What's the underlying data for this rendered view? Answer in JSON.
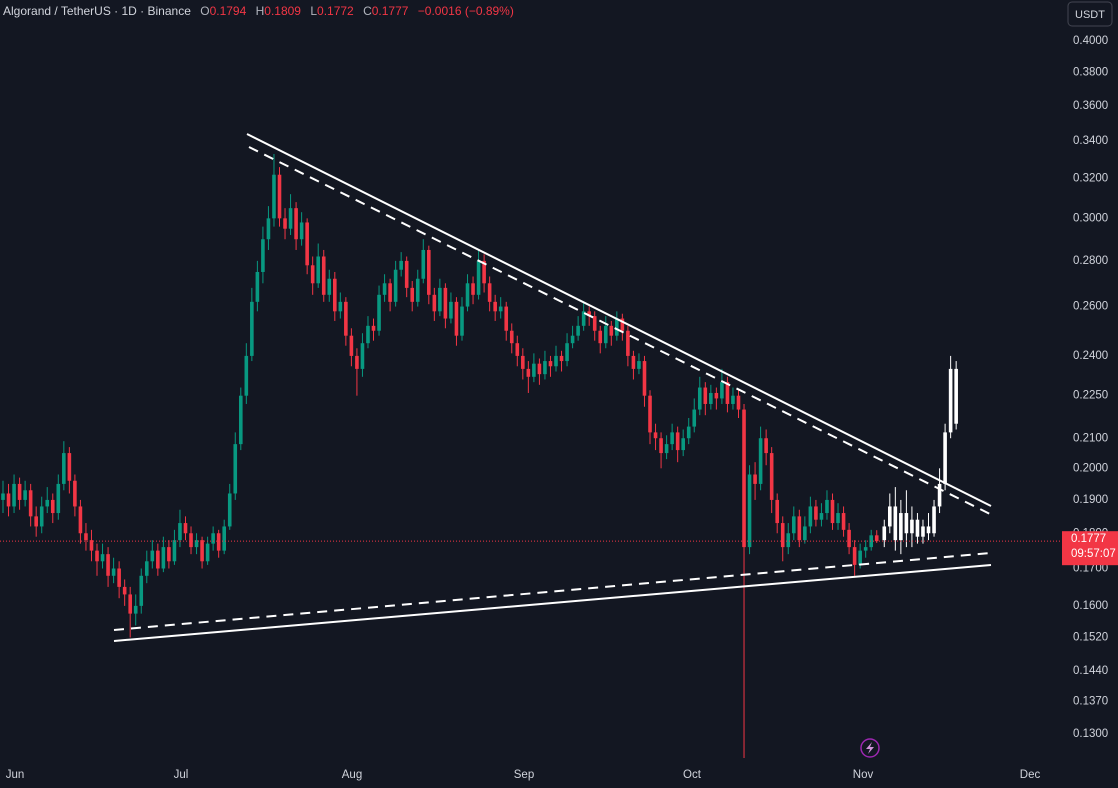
{
  "chart_data": {
    "type": "candlestick",
    "title": "Algorand / TetherUS · 1D · Binance",
    "ohlc_labels": [
      "O",
      "H",
      "L",
      "C"
    ],
    "change_label": "−0.0016 (−0.89%)",
    "currency": "USDT",
    "countdown": "09:57:07",
    "up_color": "#089981",
    "down_color": "#f23645",
    "log_scale": true,
    "grid": false,
    "ylim": [
      0.1236,
      0.4275
    ],
    "yticks": [
      {
        "value": 0.4,
        "label": "0.4000"
      },
      {
        "value": 0.38,
        "label": "0.3800"
      },
      {
        "value": 0.36,
        "label": "0.3600"
      },
      {
        "value": 0.34,
        "label": "0.3400"
      },
      {
        "value": 0.32,
        "label": "0.3200"
      },
      {
        "value": 0.3,
        "label": "0.3000"
      },
      {
        "value": 0.28,
        "label": "0.2800"
      },
      {
        "value": 0.26,
        "label": "0.2600"
      },
      {
        "value": 0.24,
        "label": "0.2400"
      },
      {
        "value": 0.225,
        "label": "0.2250"
      },
      {
        "value": 0.21,
        "label": "0.2100"
      },
      {
        "value": 0.2,
        "label": "0.2000"
      },
      {
        "value": 0.19,
        "label": "0.1900"
      },
      {
        "value": 0.18,
        "label": "0.1800"
      },
      {
        "value": 0.17,
        "label": "0.1700"
      },
      {
        "value": 0.16,
        "label": "0.1600"
      },
      {
        "value": 0.152,
        "label": "0.1520"
      },
      {
        "value": 0.144,
        "label": "0.1440"
      },
      {
        "value": 0.137,
        "label": "0.1370"
      },
      {
        "value": 0.13,
        "label": "0.1300"
      }
    ],
    "x_labels": [
      "Jun",
      "Jul",
      "Aug",
      "Sep",
      "Oct",
      "Nov",
      "Dec"
    ],
    "candles": [
      [
        0.19,
        0.196,
        0.186,
        0.192
      ],
      [
        0.192,
        0.195,
        0.185,
        0.188
      ],
      [
        0.188,
        0.198,
        0.186,
        0.195
      ],
      [
        0.195,
        0.197,
        0.187,
        0.19
      ],
      [
        0.19,
        0.196,
        0.188,
        0.193
      ],
      [
        0.193,
        0.195,
        0.182,
        0.185
      ],
      [
        0.185,
        0.188,
        0.179,
        0.182
      ],
      [
        0.182,
        0.191,
        0.18,
        0.188
      ],
      [
        0.188,
        0.194,
        0.186,
        0.19
      ],
      [
        0.19,
        0.192,
        0.183,
        0.186
      ],
      [
        0.186,
        0.198,
        0.184,
        0.195
      ],
      [
        0.195,
        0.209,
        0.193,
        0.205
      ],
      [
        0.205,
        0.207,
        0.192,
        0.196
      ],
      [
        0.196,
        0.198,
        0.185,
        0.188
      ],
      [
        0.188,
        0.19,
        0.177,
        0.18
      ],
      [
        0.18,
        0.183,
        0.175,
        0.178
      ],
      [
        0.178,
        0.181,
        0.172,
        0.175
      ],
      [
        0.175,
        0.177,
        0.168,
        0.172
      ],
      [
        0.172,
        0.177,
        0.17,
        0.174
      ],
      [
        0.174,
        0.176,
        0.165,
        0.168
      ],
      [
        0.168,
        0.173,
        0.166,
        0.17
      ],
      [
        0.17,
        0.172,
        0.162,
        0.165
      ],
      [
        0.165,
        0.167,
        0.16,
        0.163
      ],
      [
        0.163,
        0.165,
        0.152,
        0.158
      ],
      [
        0.158,
        0.163,
        0.155,
        0.16
      ],
      [
        0.16,
        0.17,
        0.158,
        0.168
      ],
      [
        0.168,
        0.175,
        0.166,
        0.172
      ],
      [
        0.172,
        0.178,
        0.17,
        0.175
      ],
      [
        0.175,
        0.177,
        0.168,
        0.17
      ],
      [
        0.17,
        0.179,
        0.169,
        0.176
      ],
      [
        0.176,
        0.178,
        0.17,
        0.172
      ],
      [
        0.172,
        0.181,
        0.171,
        0.178
      ],
      [
        0.178,
        0.187,
        0.176,
        0.183
      ],
      [
        0.183,
        0.185,
        0.178,
        0.18
      ],
      [
        0.18,
        0.182,
        0.174,
        0.176
      ],
      [
        0.176,
        0.18,
        0.174,
        0.178
      ],
      [
        0.178,
        0.179,
        0.17,
        0.172
      ],
      [
        0.172,
        0.179,
        0.171,
        0.177
      ],
      [
        0.177,
        0.182,
        0.175,
        0.18
      ],
      [
        0.18,
        0.181,
        0.173,
        0.175
      ],
      [
        0.175,
        0.184,
        0.174,
        0.182
      ],
      [
        0.182,
        0.195,
        0.181,
        0.192
      ],
      [
        0.192,
        0.212,
        0.19,
        0.208
      ],
      [
        0.208,
        0.228,
        0.206,
        0.225
      ],
      [
        0.225,
        0.245,
        0.222,
        0.24
      ],
      [
        0.24,
        0.268,
        0.238,
        0.262
      ],
      [
        0.262,
        0.28,
        0.258,
        0.275
      ],
      [
        0.275,
        0.296,
        0.27,
        0.29
      ],
      [
        0.29,
        0.306,
        0.285,
        0.3
      ],
      [
        0.3,
        0.333,
        0.296,
        0.322
      ],
      [
        0.322,
        0.326,
        0.296,
        0.3
      ],
      [
        0.3,
        0.305,
        0.29,
        0.295
      ],
      [
        0.295,
        0.312,
        0.292,
        0.305
      ],
      [
        0.305,
        0.308,
        0.285,
        0.29
      ],
      [
        0.29,
        0.303,
        0.287,
        0.298
      ],
      [
        0.298,
        0.3,
        0.274,
        0.278
      ],
      [
        0.278,
        0.282,
        0.265,
        0.27
      ],
      [
        0.27,
        0.288,
        0.268,
        0.282
      ],
      [
        0.282,
        0.285,
        0.262,
        0.265
      ],
      [
        0.265,
        0.276,
        0.262,
        0.272
      ],
      [
        0.272,
        0.275,
        0.254,
        0.258
      ],
      [
        0.258,
        0.266,
        0.255,
        0.262
      ],
      [
        0.262,
        0.264,
        0.244,
        0.248
      ],
      [
        0.248,
        0.251,
        0.236,
        0.24
      ],
      [
        0.24,
        0.243,
        0.225,
        0.235
      ],
      [
        0.235,
        0.249,
        0.232,
        0.245
      ],
      [
        0.245,
        0.256,
        0.243,
        0.252
      ],
      [
        0.252,
        0.255,
        0.246,
        0.25
      ],
      [
        0.25,
        0.269,
        0.248,
        0.265
      ],
      [
        0.265,
        0.274,
        0.262,
        0.27
      ],
      [
        0.27,
        0.272,
        0.258,
        0.262
      ],
      [
        0.262,
        0.28,
        0.26,
        0.276
      ],
      [
        0.276,
        0.284,
        0.273,
        0.28
      ],
      [
        0.28,
        0.282,
        0.264,
        0.268
      ],
      [
        0.268,
        0.271,
        0.258,
        0.262
      ],
      [
        0.262,
        0.276,
        0.26,
        0.272
      ],
      [
        0.272,
        0.29,
        0.27,
        0.285
      ],
      [
        0.285,
        0.287,
        0.261,
        0.265
      ],
      [
        0.265,
        0.268,
        0.254,
        0.258
      ],
      [
        0.258,
        0.272,
        0.256,
        0.268
      ],
      [
        0.268,
        0.27,
        0.251,
        0.255
      ],
      [
        0.255,
        0.266,
        0.253,
        0.262
      ],
      [
        0.262,
        0.264,
        0.244,
        0.248
      ],
      [
        0.248,
        0.264,
        0.246,
        0.26
      ],
      [
        0.26,
        0.274,
        0.258,
        0.27
      ],
      [
        0.27,
        0.273,
        0.261,
        0.265
      ],
      [
        0.265,
        0.285,
        0.263,
        0.28
      ],
      [
        0.28,
        0.283,
        0.266,
        0.27
      ],
      [
        0.27,
        0.273,
        0.258,
        0.262
      ],
      [
        0.262,
        0.265,
        0.254,
        0.258
      ],
      [
        0.258,
        0.264,
        0.255,
        0.26
      ],
      [
        0.26,
        0.262,
        0.246,
        0.25
      ],
      [
        0.25,
        0.253,
        0.241,
        0.245
      ],
      [
        0.245,
        0.248,
        0.236,
        0.24
      ],
      [
        0.24,
        0.243,
        0.231,
        0.235
      ],
      [
        0.235,
        0.238,
        0.226,
        0.232
      ],
      [
        0.232,
        0.241,
        0.23,
        0.237
      ],
      [
        0.237,
        0.239,
        0.229,
        0.233
      ],
      [
        0.233,
        0.242,
        0.231,
        0.238
      ],
      [
        0.238,
        0.24,
        0.232,
        0.236
      ],
      [
        0.236,
        0.244,
        0.234,
        0.24
      ],
      [
        0.24,
        0.242,
        0.234,
        0.238
      ],
      [
        0.238,
        0.249,
        0.236,
        0.245
      ],
      [
        0.245,
        0.252,
        0.243,
        0.248
      ],
      [
        0.248,
        0.256,
        0.246,
        0.252
      ],
      [
        0.252,
        0.262,
        0.25,
        0.258
      ],
      [
        0.258,
        0.26,
        0.252,
        0.256
      ],
      [
        0.256,
        0.258,
        0.246,
        0.25
      ],
      [
        0.25,
        0.252,
        0.241,
        0.245
      ],
      [
        0.245,
        0.256,
        0.243,
        0.252
      ],
      [
        0.252,
        0.254,
        0.244,
        0.248
      ],
      [
        0.248,
        0.258,
        0.246,
        0.255
      ],
      [
        0.255,
        0.257,
        0.246,
        0.25
      ],
      [
        0.25,
        0.252,
        0.236,
        0.24
      ],
      [
        0.24,
        0.242,
        0.231,
        0.235
      ],
      [
        0.235,
        0.241,
        0.233,
        0.238
      ],
      [
        0.238,
        0.24,
        0.221,
        0.225
      ],
      [
        0.225,
        0.227,
        0.208,
        0.212
      ],
      [
        0.212,
        0.215,
        0.206,
        0.21
      ],
      [
        0.21,
        0.212,
        0.2,
        0.205
      ],
      [
        0.205,
        0.211,
        0.203,
        0.208
      ],
      [
        0.208,
        0.215,
        0.206,
        0.212
      ],
      [
        0.212,
        0.214,
        0.202,
        0.206
      ],
      [
        0.206,
        0.213,
        0.204,
        0.21
      ],
      [
        0.21,
        0.217,
        0.208,
        0.214
      ],
      [
        0.214,
        0.224,
        0.212,
        0.22
      ],
      [
        0.22,
        0.232,
        0.218,
        0.228
      ],
      [
        0.228,
        0.23,
        0.218,
        0.222
      ],
      [
        0.222,
        0.229,
        0.22,
        0.226
      ],
      [
        0.226,
        0.228,
        0.22,
        0.224
      ],
      [
        0.224,
        0.235,
        0.222,
        0.23
      ],
      [
        0.23,
        0.232,
        0.219,
        0.222
      ],
      [
        0.222,
        0.228,
        0.22,
        0.225
      ],
      [
        0.225,
        0.227,
        0.217,
        0.22
      ],
      [
        0.22,
        0.222,
        0.125,
        0.176
      ],
      [
        0.176,
        0.201,
        0.174,
        0.198
      ],
      [
        0.198,
        0.202,
        0.19,
        0.195
      ],
      [
        0.195,
        0.214,
        0.193,
        0.21
      ],
      [
        0.21,
        0.213,
        0.201,
        0.205
      ],
      [
        0.205,
        0.207,
        0.186,
        0.19
      ],
      [
        0.19,
        0.192,
        0.18,
        0.183
      ],
      [
        0.183,
        0.185,
        0.172,
        0.176
      ],
      [
        0.176,
        0.183,
        0.174,
        0.18
      ],
      [
        0.18,
        0.188,
        0.178,
        0.185
      ],
      [
        0.185,
        0.187,
        0.176,
        0.178
      ],
      [
        0.178,
        0.185,
        0.177,
        0.182
      ],
      [
        0.182,
        0.191,
        0.18,
        0.188
      ],
      [
        0.188,
        0.19,
        0.182,
        0.184
      ],
      [
        0.184,
        0.189,
        0.182,
        0.186
      ],
      [
        0.186,
        0.193,
        0.184,
        0.19
      ],
      [
        0.19,
        0.192,
        0.181,
        0.183
      ],
      [
        0.183,
        0.189,
        0.181,
        0.186
      ],
      [
        0.186,
        0.188,
        0.179,
        0.181
      ],
      [
        0.181,
        0.183,
        0.174,
        0.176
      ],
      [
        0.176,
        0.178,
        0.168,
        0.171
      ],
      [
        0.171,
        0.177,
        0.17,
        0.175
      ],
      [
        0.175,
        0.178,
        0.173,
        0.176
      ],
      [
        0.176,
        0.181,
        0.175,
        0.1794
      ],
      [
        0.1794,
        0.1809,
        0.1772,
        0.1777
      ]
    ],
    "projection": {
      "color": "#ffffff",
      "candles": [
        [
          0.178,
          0.184,
          0.176,
          0.182
        ],
        [
          0.182,
          0.192,
          0.18,
          0.188
        ],
        [
          0.188,
          0.194,
          0.175,
          0.178
        ],
        [
          0.178,
          0.19,
          0.174,
          0.186
        ],
        [
          0.186,
          0.193,
          0.176,
          0.18
        ],
        [
          0.18,
          0.188,
          0.176,
          0.184
        ],
        [
          0.184,
          0.186,
          0.177,
          0.179
        ],
        [
          0.179,
          0.184,
          0.177,
          0.182
        ],
        [
          0.182,
          0.186,
          0.178,
          0.18
        ],
        [
          0.18,
          0.19,
          0.179,
          0.188
        ],
        [
          0.188,
          0.2,
          0.186,
          0.195
        ],
        [
          0.195,
          0.215,
          0.193,
          0.212
        ],
        [
          0.212,
          0.24,
          0.21,
          0.235
        ],
        [
          0.235,
          0.238,
          0.213,
          0.215
        ]
      ]
    }
  }
}
